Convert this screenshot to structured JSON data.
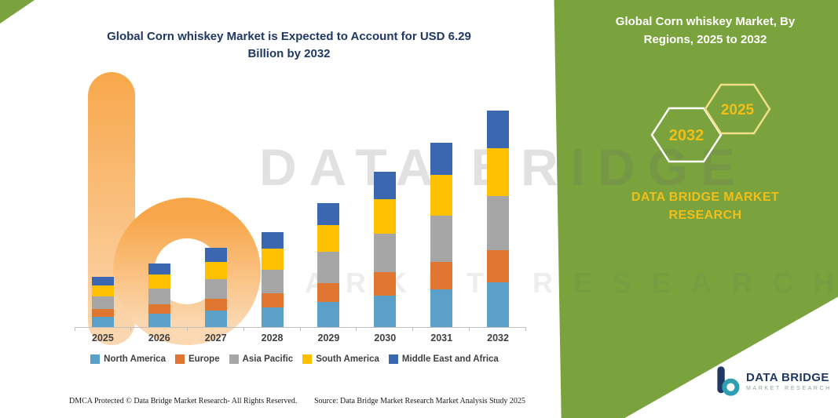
{
  "title": {
    "text": "Global Corn whiskey Market is Expected to Account for USD 6.29 Billion by 2032",
    "color": "#1F3864"
  },
  "watermark": {
    "line1": "DATA BRIDGE",
    "line2": "MARKET RESEARCH"
  },
  "side_panel": {
    "bg_color": "#7AA33D",
    "accent_yellow": "#F2BE19",
    "title": "Global Corn whiskey Market, By Regions, 2025 to 2032",
    "hexagons": [
      "2032",
      "2025"
    ],
    "brand": "DATA BRIDGE MARKET RESEARCH"
  },
  "logo": {
    "name": "DATA BRIDGE",
    "subtitle": "MARKET RESEARCH"
  },
  "footer": {
    "dmca": "DMCA Protected © Data Bridge Market Research-  All Rights Reserved.",
    "source": "Source: Data Bridge Market Research  Market Analysis Study 2025"
  },
  "chart_data": {
    "type": "bar",
    "stacked": true,
    "title": "Global Corn whiskey Market is Expected to Account for USD 6.29 Billion by 2032",
    "unit": "USD Billion",
    "categories": [
      "2025",
      "2026",
      "2027",
      "2028",
      "2029",
      "2030",
      "2031",
      "2032"
    ],
    "series": [
      {
        "name": "North America",
        "color": "#5BA0C9",
        "values": [
          0.3,
          0.38,
          0.47,
          0.56,
          0.74,
          0.92,
          1.1,
          1.29
        ]
      },
      {
        "name": "Europe",
        "color": "#E0762F",
        "values": [
          0.22,
          0.28,
          0.35,
          0.41,
          0.54,
          0.68,
          0.8,
          0.94
        ]
      },
      {
        "name": "Asia Pacific",
        "color": "#A6A6A6",
        "values": [
          0.36,
          0.46,
          0.57,
          0.69,
          0.9,
          1.12,
          1.34,
          1.57
        ]
      },
      {
        "name": "South America",
        "color": "#FFC000",
        "values": [
          0.32,
          0.41,
          0.51,
          0.61,
          0.79,
          0.99,
          1.18,
          1.38
        ]
      },
      {
        "name": "Middle East and Africa",
        "color": "#3B66B0",
        "values": [
          0.25,
          0.32,
          0.4,
          0.48,
          0.63,
          0.79,
          0.93,
          1.11
        ]
      }
    ],
    "totals": [
      1.45,
      1.85,
      2.3,
      2.75,
      3.6,
      4.5,
      5.35,
      6.29
    ],
    "ylim": [
      0,
      6.6
    ],
    "gridlines": false,
    "legend_position": "bottom"
  }
}
